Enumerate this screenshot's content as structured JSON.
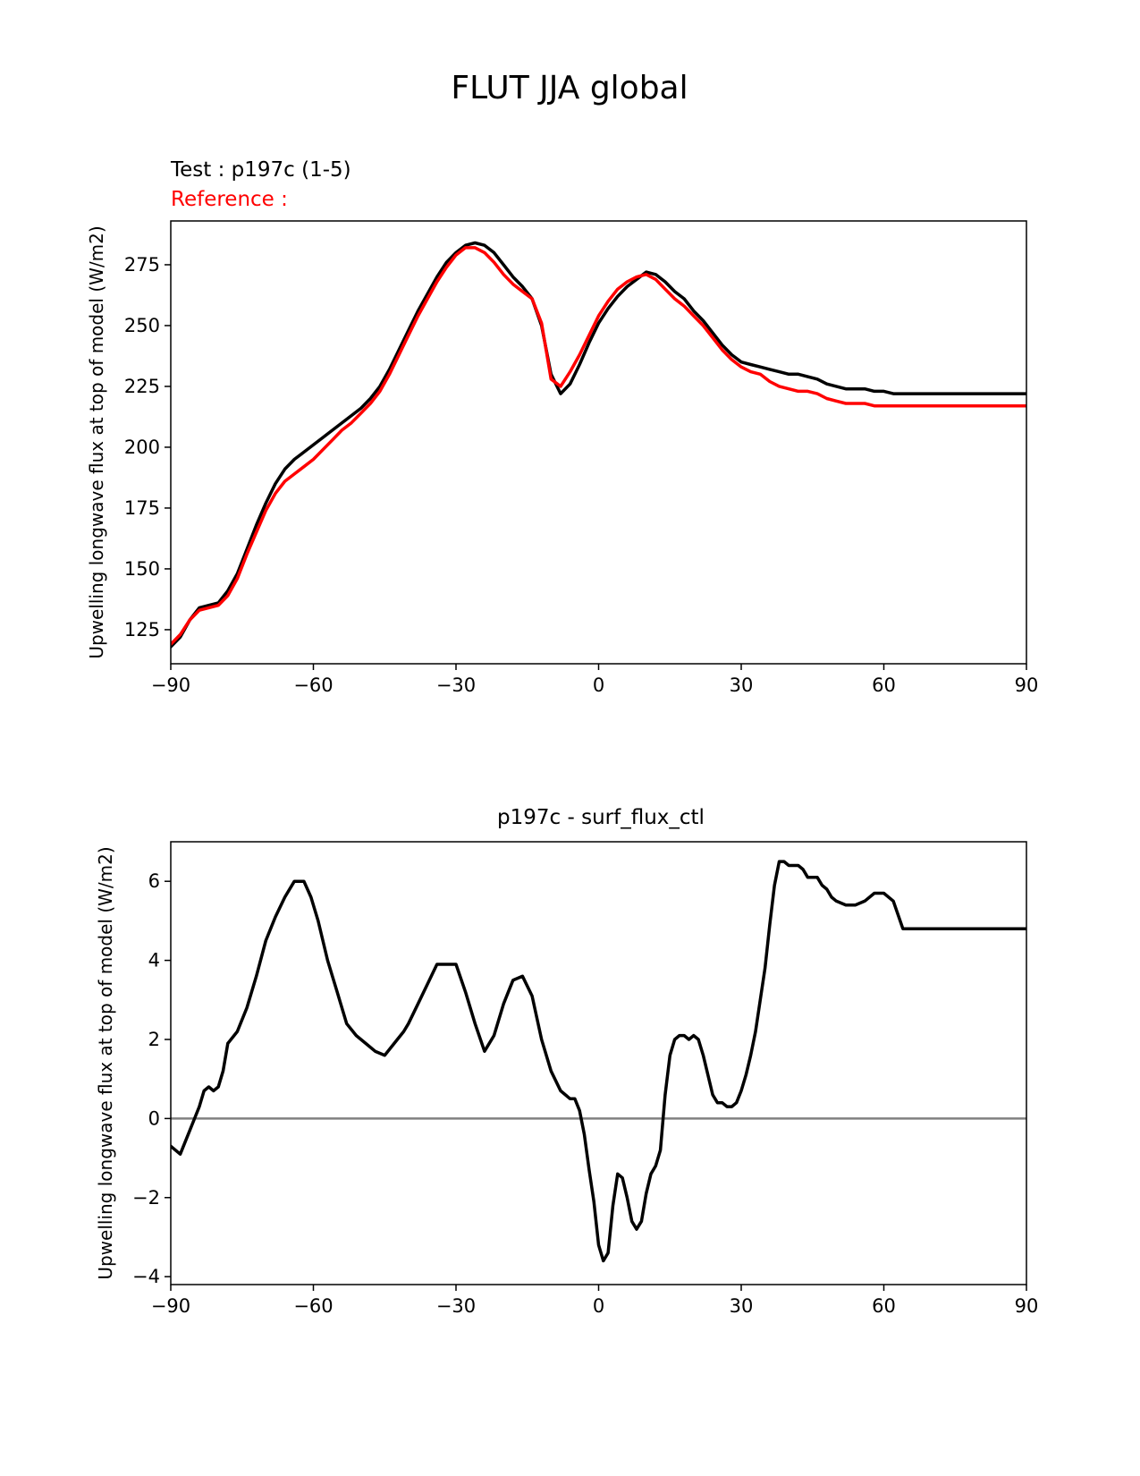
{
  "figure": {
    "title": "FLUT JJA global"
  },
  "chart_data": [
    {
      "type": "line",
      "test_label": "Test : p197c (1-5)",
      "reference_label": "Reference :",
      "title": "",
      "xlabel": "",
      "ylabel": "Upwelling longwave flux at top of model (W/m2)",
      "xlim": [
        -90,
        90
      ],
      "ylim": [
        111,
        293
      ],
      "xticks": [
        -90,
        -60,
        -30,
        0,
        30,
        60,
        90
      ],
      "xtick_labels": [
        "−90",
        "−60",
        "−30",
        "0",
        "30",
        "60",
        "90"
      ],
      "yticks": [
        125,
        150,
        175,
        200,
        225,
        250,
        275
      ],
      "ytick_labels": [
        "125",
        "150",
        "175",
        "200",
        "225",
        "250",
        "275"
      ],
      "colors": {
        "test": "#000000",
        "reference": "#ff0000"
      },
      "series": [
        {
          "name": "test",
          "x": [
            -90,
            -88,
            -86,
            -84,
            -82,
            -80,
            -78,
            -76,
            -74,
            -72,
            -70,
            -68,
            -66,
            -64,
            -62,
            -60,
            -58,
            -56,
            -54,
            -52,
            -50,
            -48,
            -46,
            -44,
            -42,
            -40,
            -38,
            -36,
            -34,
            -32,
            -30,
            -28,
            -26,
            -24,
            -22,
            -20,
            -18,
            -16,
            -14,
            -12,
            -10,
            -8,
            -6,
            -4,
            -2,
            0,
            2,
            4,
            6,
            8,
            10,
            12,
            14,
            16,
            18,
            20,
            22,
            24,
            26,
            28,
            30,
            32,
            34,
            36,
            38,
            40,
            42,
            44,
            46,
            48,
            50,
            52,
            54,
            56,
            58,
            60,
            62,
            64,
            66,
            68,
            70,
            72,
            74,
            76,
            78,
            80,
            82,
            84,
            86,
            88,
            90
          ],
          "values": [
            118,
            122,
            129,
            134,
            135,
            136,
            141,
            148,
            158,
            168,
            177,
            185,
            191,
            195,
            198,
            201,
            204,
            207,
            210,
            213,
            216,
            220,
            225,
            232,
            240,
            248,
            256,
            263,
            270,
            276,
            280,
            283,
            284,
            283,
            280,
            275,
            270,
            266,
            261,
            250,
            230,
            222,
            226,
            234,
            243,
            251,
            257,
            262,
            266,
            269,
            272,
            271,
            268,
            264,
            261,
            256,
            252,
            247,
            242,
            238,
            235,
            234,
            233,
            232,
            231,
            230,
            230,
            229,
            228,
            226,
            225,
            224,
            224,
            224,
            223,
            223,
            222,
            222,
            222,
            222,
            222,
            222,
            222,
            222,
            222,
            222,
            222,
            222,
            222,
            222,
            222
          ],
          "note": "x values span -90..90 in 2-degree steps; values tail beyond plotted range is trimmed by xlim"
        },
        {
          "name": "reference",
          "x": [
            -90,
            -88,
            -86,
            -84,
            -82,
            -80,
            -78,
            -76,
            -74,
            -72,
            -70,
            -68,
            -66,
            -64,
            -62,
            -60,
            -58,
            -56,
            -54,
            -52,
            -50,
            -48,
            -46,
            -44,
            -42,
            -40,
            -38,
            -36,
            -34,
            -32,
            -30,
            -28,
            -26,
            -24,
            -22,
            -20,
            -18,
            -16,
            -14,
            -12,
            -10,
            -8,
            -6,
            -4,
            -2,
            0,
            2,
            4,
            6,
            8,
            10,
            12,
            14,
            16,
            18,
            20,
            22,
            24,
            26,
            28,
            30,
            32,
            34,
            36,
            38,
            40,
            42,
            44,
            46,
            48,
            50,
            52,
            54,
            56,
            58,
            60,
            62,
            64,
            66,
            68,
            70,
            72,
            74,
            76,
            78,
            80,
            82,
            84,
            86,
            88,
            90
          ],
          "values": [
            119,
            123,
            129,
            133,
            134,
            135,
            139,
            146,
            156,
            165,
            174,
            181,
            186,
            189,
            192,
            195,
            199,
            203,
            207,
            210,
            214,
            218,
            223,
            230,
            238,
            246,
            254,
            261,
            268,
            274,
            279,
            282,
            282,
            280,
            276,
            271,
            267,
            264,
            261,
            251,
            228,
            225,
            231,
            238,
            246,
            254,
            260,
            265,
            268,
            270,
            271,
            269,
            265,
            261,
            258,
            254,
            250,
            245,
            240,
            236,
            233,
            231,
            230,
            227,
            225,
            224,
            223,
            223,
            222,
            220,
            219,
            218,
            218,
            218,
            217,
            217,
            217,
            217,
            217,
            217,
            217,
            217,
            217,
            217,
            217,
            217,
            217,
            217,
            217,
            217,
            217
          ]
        }
      ]
    },
    {
      "type": "line",
      "title": "p197c - surf_flux_ctl",
      "xlabel": "",
      "ylabel": "Upwelling longwave flux at top of model (W/m2)",
      "xlim": [
        -90,
        90
      ],
      "ylim": [
        -4.2,
        7.0
      ],
      "xticks": [
        -90,
        -60,
        -30,
        0,
        30,
        60,
        90
      ],
      "xtick_labels": [
        "−90",
        "−60",
        "−30",
        "0",
        "30",
        "60",
        "90"
      ],
      "yticks": [
        -4,
        -2,
        0,
        2,
        4,
        6
      ],
      "ytick_labels": [
        "−4",
        "−2",
        "0",
        "2",
        "4",
        "6"
      ],
      "zero_line": 0,
      "colors": {
        "diff": "#000000",
        "zero": "#808080"
      },
      "series": [
        {
          "name": "difference",
          "x": [
            -90,
            -88,
            -86,
            -85,
            -84,
            -83,
            -82,
            -81,
            -80,
            -79,
            -78,
            -76,
            -74,
            -72,
            -70,
            -68,
            -66,
            -64,
            -62,
            -60.5,
            -59,
            -57,
            -55,
            -53,
            -51,
            -49,
            -47,
            -45,
            -43,
            -41,
            -40,
            -38,
            -36,
            -34,
            -32,
            -30,
            -28,
            -26,
            -24,
            -22,
            -20,
            -18,
            -16,
            -14,
            -12,
            -10,
            -8,
            -6,
            -5,
            -4,
            -3,
            -2,
            -1,
            0,
            1,
            2,
            3,
            4,
            5,
            6,
            7,
            8,
            9,
            10,
            11,
            12,
            13,
            14,
            15,
            16,
            17,
            18,
            19,
            20,
            21,
            22,
            23,
            24,
            25,
            26,
            27,
            28,
            29,
            30,
            31,
            32,
            33,
            34,
            35,
            36,
            37,
            38,
            39,
            40,
            41,
            42,
            43,
            44,
            45,
            46,
            47,
            48,
            49,
            50,
            52,
            54,
            56,
            58,
            60,
            62,
            64,
            66,
            67,
            68,
            69,
            70,
            71,
            72,
            73,
            74,
            75,
            76,
            77,
            78,
            79,
            80,
            81,
            82,
            83,
            84,
            85,
            86,
            87,
            88,
            89,
            90
          ],
          "values": [
            -0.7,
            -0.9,
            -0.3,
            0.0,
            0.3,
            0.7,
            0.8,
            0.7,
            0.8,
            1.2,
            1.9,
            2.2,
            2.8,
            3.6,
            4.5,
            5.1,
            5.6,
            6.0,
            6.0,
            5.6,
            5.0,
            4.0,
            3.2,
            2.4,
            2.1,
            1.9,
            1.7,
            1.6,
            1.9,
            2.2,
            2.4,
            2.9,
            3.4,
            3.9,
            3.9,
            3.9,
            3.2,
            2.4,
            1.7,
            2.1,
            2.9,
            3.5,
            3.6,
            3.1,
            2.0,
            1.2,
            0.7,
            0.5,
            0.5,
            0.2,
            -0.4,
            -1.3,
            -2.1,
            -3.2,
            -3.6,
            -3.4,
            -2.2,
            -1.4,
            -1.5,
            -2.0,
            -2.6,
            -2.8,
            -2.6,
            -1.9,
            -1.4,
            -1.2,
            -0.8,
            0.6,
            1.6,
            2.0,
            2.1,
            2.1,
            2.0,
            2.1,
            2.0,
            1.6,
            1.1,
            0.6,
            0.4,
            0.4,
            0.3,
            0.3,
            0.4,
            0.7,
            1.1,
            1.6,
            2.2,
            3.0,
            3.8,
            4.9,
            5.9,
            6.5,
            6.5,
            6.4,
            6.4,
            6.4,
            6.3,
            6.1,
            6.1,
            6.1,
            5.9,
            5.8,
            5.6,
            5.5,
            5.4,
            5.4,
            5.5,
            5.7,
            5.7,
            5.5,
            4.8,
            4.8,
            4.8,
            4.8,
            4.8,
            4.8,
            4.8,
            4.8,
            4.8,
            4.8,
            4.8,
            4.8,
            4.8,
            4.8,
            4.8,
            4.8,
            4.8,
            4.8,
            4.8,
            4.8,
            4.8,
            4.8,
            4.8,
            4.8,
            4.8,
            4.8
          ],
          "note": "difference series test minus reference"
        }
      ]
    }
  ]
}
